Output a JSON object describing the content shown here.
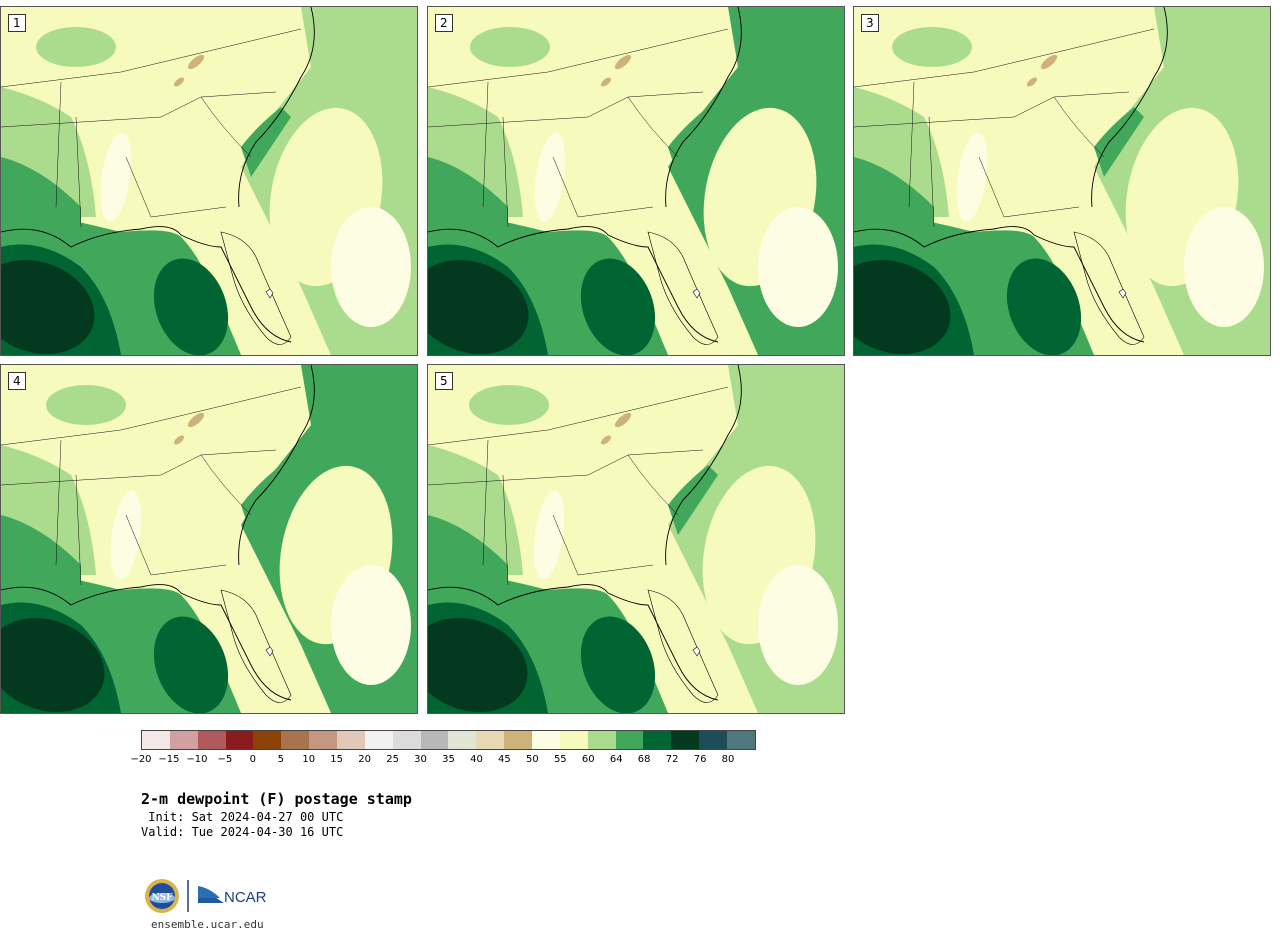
{
  "product": {
    "title": "2-m dewpoint (F) postage stamp",
    "init": " Init: Sat 2024-04-27 00 UTC",
    "valid": "Valid: Tue 2024-04-30 16 UTC"
  },
  "members": [
    {
      "label": "1"
    },
    {
      "label": "2"
    },
    {
      "label": "3"
    },
    {
      "label": "4"
    },
    {
      "label": "5"
    }
  ],
  "colorbar": {
    "colors": [
      "#f5e8e8",
      "#d0a0a2",
      "#b05a5e",
      "#8b1a1f",
      "#8a4208",
      "#a87450",
      "#c49880",
      "#e2c8b8",
      "#f2f2f2",
      "#dcdcdc",
      "#b8b8b8",
      "#e2e4d6",
      "#e6d9b4",
      "#cfb27a",
      "#fdfde4",
      "#f7fabd",
      "#abdc8e",
      "#41a85b",
      "#006433",
      "#033a1f",
      "#1c4d59",
      "#50787d"
    ],
    "tick_labels": [
      "−20",
      "−15",
      "−10",
      "−5",
      "0",
      "5",
      "10",
      "15",
      "20",
      "25",
      "30",
      "35",
      "40",
      "45",
      "50",
      "55",
      "60",
      "64",
      "68",
      "72",
      "76",
      "80"
    ]
  },
  "footer": {
    "nsf_text": "NSF",
    "ncar_text": "NCAR",
    "url": "ensemble.ucar.edu"
  }
}
